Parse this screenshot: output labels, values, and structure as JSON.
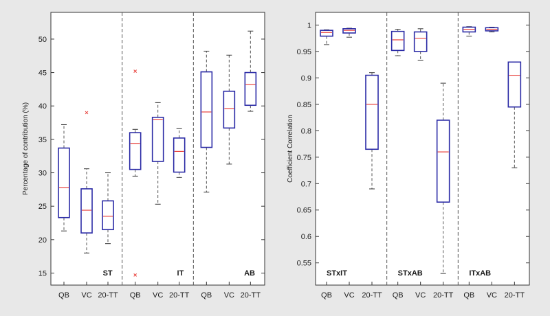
{
  "chart_data": [
    {
      "type": "boxplot",
      "ylabel": "Percentage of contribution (%)",
      "ylim": [
        13.2,
        54.0
      ],
      "yticks": [
        15,
        20,
        25,
        30,
        35,
        40,
        45,
        50
      ],
      "grid": false,
      "colors": {
        "box": "#2b2ba6",
        "median": "#e8413c",
        "whisker": "#555555",
        "outlier": "#e8413c"
      },
      "groups": [
        {
          "label": "ST",
          "boxes": [
            {
              "category": "QB",
              "whisker_low": 21.3,
              "q1": 23.3,
              "median": 27.8,
              "q3": 33.7,
              "whisker_high": 37.2,
              "outliers": []
            },
            {
              "category": "VC",
              "whisker_low": 18.0,
              "q1": 21.0,
              "median": 24.4,
              "q3": 27.6,
              "whisker_high": 30.6,
              "outliers": [
                39.0
              ]
            },
            {
              "category": "20-TT",
              "whisker_low": 19.4,
              "q1": 21.5,
              "median": 23.5,
              "q3": 25.8,
              "whisker_high": 30.0,
              "outliers": []
            }
          ]
        },
        {
          "label": "IT",
          "boxes": [
            {
              "category": "QB",
              "whisker_low": 29.5,
              "q1": 30.5,
              "median": 34.4,
              "q3": 36.0,
              "whisker_high": 36.5,
              "outliers": [
                45.2,
                14.7
              ]
            },
            {
              "category": "VC",
              "whisker_low": 25.3,
              "q1": 31.7,
              "median": 38.0,
              "q3": 38.3,
              "whisker_high": 40.5,
              "outliers": []
            },
            {
              "category": "20-TT",
              "whisker_low": 29.3,
              "q1": 30.1,
              "median": 33.2,
              "q3": 35.2,
              "whisker_high": 36.6,
              "outliers": []
            }
          ]
        },
        {
          "label": "AB",
          "boxes": [
            {
              "category": "QB",
              "whisker_low": 27.1,
              "q1": 33.8,
              "median": 39.1,
              "q3": 45.1,
              "whisker_high": 48.2,
              "outliers": []
            },
            {
              "category": "VC",
              "whisker_low": 31.3,
              "q1": 36.7,
              "median": 39.6,
              "q3": 42.2,
              "whisker_high": 47.6,
              "outliers": []
            },
            {
              "category": "20-TT",
              "whisker_low": 39.2,
              "q1": 40.1,
              "median": 43.2,
              "q3": 45.0,
              "whisker_high": 51.2,
              "outliers": []
            }
          ]
        }
      ]
    },
    {
      "type": "boxplot",
      "ylabel": "Coefficient Correlation",
      "ylim": [
        0.508,
        1.024
      ],
      "yticks": [
        0.55,
        0.6,
        0.65,
        0.7,
        0.75,
        0.8,
        0.85,
        0.9,
        0.95,
        1
      ],
      "grid": false,
      "colors": {
        "box": "#2b2ba6",
        "median": "#e8413c",
        "whisker": "#555555",
        "outlier": "#e8413c"
      },
      "groups": [
        {
          "label": "STxIT",
          "boxes": [
            {
              "category": "QB",
              "whisker_low": 0.963,
              "q1": 0.979,
              "median": 0.986,
              "q3": 0.99,
              "whisker_high": 0.991,
              "outliers": []
            },
            {
              "category": "VC",
              "whisker_low": 0.977,
              "q1": 0.985,
              "median": 0.99,
              "q3": 0.993,
              "whisker_high": 0.994,
              "outliers": []
            },
            {
              "category": "20-TT",
              "whisker_low": 0.69,
              "q1": 0.765,
              "median": 0.85,
              "q3": 0.905,
              "whisker_high": 0.91,
              "outliers": []
            }
          ]
        },
        {
          "label": "STxAB",
          "boxes": [
            {
              "category": "QB",
              "whisker_low": 0.942,
              "q1": 0.952,
              "median": 0.972,
              "q3": 0.988,
              "whisker_high": 0.992,
              "outliers": []
            },
            {
              "category": "VC",
              "whisker_low": 0.933,
              "q1": 0.95,
              "median": 0.975,
              "q3": 0.987,
              "whisker_high": 0.993,
              "outliers": []
            },
            {
              "category": "20-TT",
              "whisker_low": 0.53,
              "q1": 0.665,
              "median": 0.76,
              "q3": 0.82,
              "whisker_high": 0.89,
              "outliers": []
            }
          ]
        },
        {
          "label": "ITxAB",
          "boxes": [
            {
              "category": "QB",
              "whisker_low": 0.979,
              "q1": 0.987,
              "median": 0.992,
              "q3": 0.996,
              "whisker_high": 0.997,
              "outliers": []
            },
            {
              "category": "VC",
              "whisker_low": 0.987,
              "q1": 0.989,
              "median": 0.992,
              "q3": 0.995,
              "whisker_high": 0.996,
              "outliers": []
            },
            {
              "category": "20-TT",
              "whisker_low": 0.73,
              "q1": 0.845,
              "median": 0.905,
              "q3": 0.93,
              "whisker_high": 0.93,
              "outliers": []
            }
          ]
        }
      ]
    }
  ]
}
